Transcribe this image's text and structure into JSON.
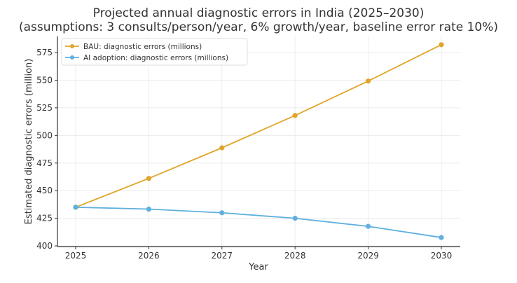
{
  "chart_data": {
    "type": "line",
    "title": "Projected annual diagnostic errors in India (2025–2030)",
    "subtitle": "(assumptions: 3 consults/person/year, 6% growth/year, baseline error rate 10%)",
    "xlabel": "Year",
    "ylabel": "Estimated diagnostic errors (million)",
    "x": [
      2025,
      2026,
      2027,
      2028,
      2029,
      2030
    ],
    "xticks": [
      "2025",
      "2026",
      "2027",
      "2028",
      "2029",
      "2030"
    ],
    "yticks": [
      400,
      425,
      450,
      475,
      500,
      525,
      550,
      575
    ],
    "ylim": [
      399.4,
      589.6
    ],
    "grid": true,
    "legend_position": "top-left",
    "series": [
      {
        "name": "BAU: diagnostic errors (millions)",
        "color": "#e0a52a",
        "values": [
          435.0,
          461.1,
          488.8,
          518.1,
          549.2,
          582.1
        ]
      },
      {
        "name": "AI adoption: diagnostic errors (millions)",
        "color": "#5fb0de",
        "values": [
          435.0,
          433.3,
          430.0,
          425.0,
          417.7,
          407.6
        ]
      }
    ]
  }
}
